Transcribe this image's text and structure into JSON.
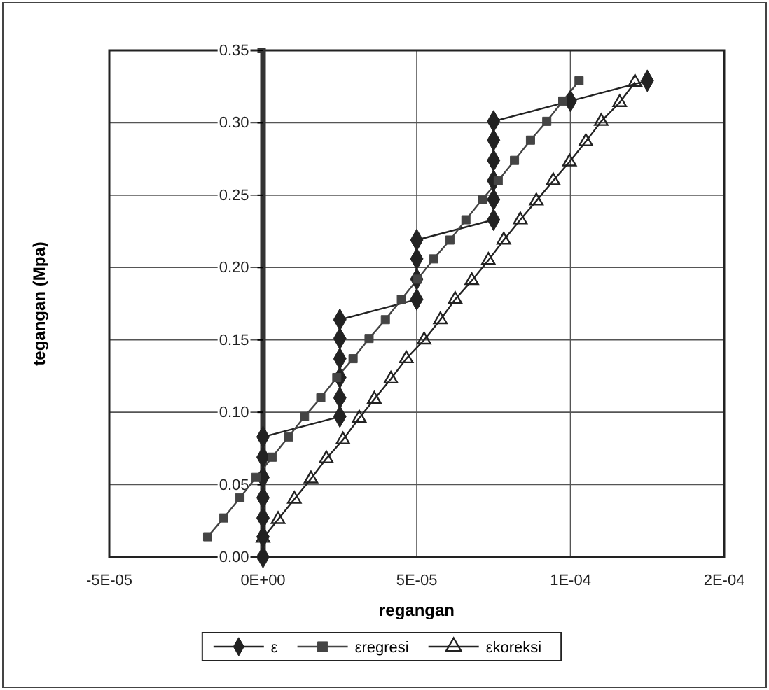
{
  "chart_data": {
    "type": "line",
    "xlabel": "regangan",
    "ylabel": "tegangan (Mpa)",
    "xlim": [
      -5e-05,
      0.00015
    ],
    "xticks": [
      {
        "value": -5e-05,
        "label": "-5E-05"
      },
      {
        "value": 0,
        "label": "0E+00"
      },
      {
        "value": 5e-05,
        "label": "5E-05"
      },
      {
        "value": 0.0001,
        "label": "1E-04"
      },
      {
        "value": 0.00015,
        "label": "2E-04"
      }
    ],
    "ylim": [
      0,
      0.35
    ],
    "yticks": [
      {
        "value": 0,
        "label": "0.00"
      },
      {
        "value": 0.05,
        "label": "0.05"
      },
      {
        "value": 0.1,
        "label": "0.10"
      },
      {
        "value": 0.15,
        "label": "0.15"
      },
      {
        "value": 0.2,
        "label": "0.20"
      },
      {
        "value": 0.25,
        "label": "0.25"
      },
      {
        "value": 0.3,
        "label": "0.30"
      },
      {
        "value": 0.35,
        "label": "0.35"
      }
    ],
    "grid": true,
    "legend": "bottom",
    "line_style": "solid",
    "series": [
      {
        "name": "ε",
        "color": "#222222",
        "marker": "diamond",
        "x": [
          0,
          0,
          0,
          0,
          0,
          0,
          0,
          2.5e-05,
          2.5e-05,
          2.5e-05,
          2.5e-05,
          2.5e-05,
          2.5e-05,
          5e-05,
          5e-05,
          5e-05,
          5e-05,
          7.5e-05,
          7.5e-05,
          7.5e-05,
          7.5e-05,
          7.5e-05,
          7.5e-05,
          0.0001,
          0.000125
        ],
        "values": [
          0,
          0.014,
          0.027,
          0.041,
          0.055,
          0.069,
          0.083,
          0.097,
          0.11,
          0.124,
          0.137,
          0.151,
          0.164,
          0.178,
          0.192,
          0.206,
          0.219,
          0.233,
          0.247,
          0.26,
          0.274,
          0.288,
          0.301,
          0.315,
          0.329
        ]
      },
      {
        "name": "εregresi",
        "color": "#444444",
        "marker": "square",
        "x": [
          -1.8e-05,
          -1.28e-05,
          -7.5e-06,
          -2.3e-06,
          3e-06,
          8.3e-06,
          1.35e-05,
          1.88e-05,
          2.4e-05,
          2.93e-05,
          3.45e-05,
          3.98e-05,
          4.5e-05,
          5.03e-05,
          5.55e-05,
          6.08e-05,
          6.6e-05,
          7.13e-05,
          7.65e-05,
          8.18e-05,
          8.7e-05,
          9.23e-05,
          9.75e-05,
          0.0001028
        ],
        "values": [
          0.014,
          0.027,
          0.041,
          0.055,
          0.069,
          0.083,
          0.097,
          0.11,
          0.124,
          0.137,
          0.151,
          0.164,
          0.178,
          0.192,
          0.206,
          0.219,
          0.233,
          0.247,
          0.26,
          0.274,
          0.288,
          0.301,
          0.315,
          0.329
        ]
      },
      {
        "name": "εkoreksi",
        "color": "#222222",
        "marker": "triangle",
        "x": [
          0,
          4.9e-06,
          1.02e-05,
          1.56e-05,
          2.06e-05,
          2.6e-05,
          3.13e-05,
          3.62e-05,
          4.16e-05,
          4.66e-05,
          5.24e-05,
          5.77e-05,
          6.25e-05,
          6.79e-05,
          7.33e-05,
          7.83e-05,
          8.37e-05,
          8.89e-05,
          9.44e-05,
          9.97e-05,
          0.000105,
          0.00011,
          0.000116,
          0.000121
        ],
        "values": [
          0.013,
          0.026,
          0.04,
          0.054,
          0.068,
          0.081,
          0.096,
          0.109,
          0.123,
          0.137,
          0.15,
          0.164,
          0.178,
          0.191,
          0.205,
          0.219,
          0.233,
          0.246,
          0.26,
          0.273,
          0.287,
          0.301,
          0.314,
          0.328
        ]
      }
    ]
  }
}
